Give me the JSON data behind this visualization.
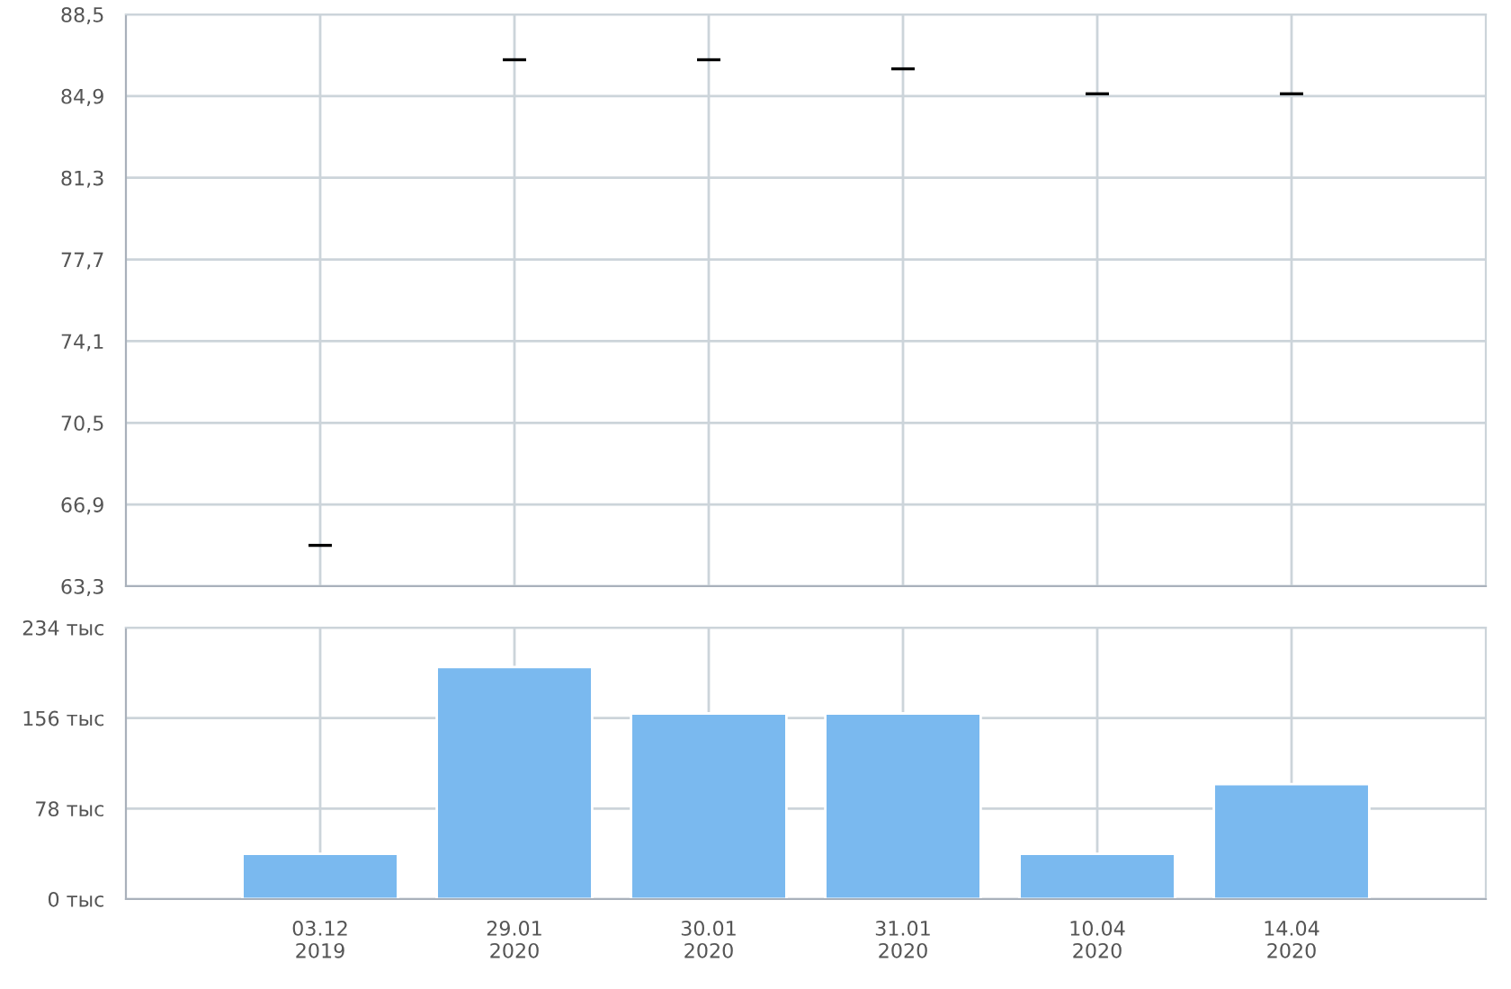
{
  "chart_data": [
    {
      "type": "candlestick",
      "categories": [
        null,
        null,
        null,
        null,
        null,
        null
      ],
      "ohlc": [
        [
          65.1,
          65.1,
          65.1,
          65.1
        ],
        [
          86.5,
          86.5,
          86.5,
          86.5
        ],
        [
          86.5,
          86.5,
          86.5,
          86.5
        ],
        [
          86.1,
          86.1,
          86.1,
          86.1
        ],
        [
          85.0,
          85.0,
          85.0,
          85.0
        ],
        [
          85.0,
          85.0,
          85.0,
          85.0
        ]
      ],
      "ylim": [
        63.3,
        88.5
      ],
      "yticks": [
        {
          "value": 63.3,
          "label": "63,3"
        },
        {
          "value": 66.9,
          "label": "66,9"
        },
        {
          "value": 70.5,
          "label": "70,5"
        },
        {
          "value": 74.1,
          "label": "74,1"
        },
        {
          "value": 77.7,
          "label": "77,7"
        },
        {
          "value": 81.3,
          "label": "81,3"
        },
        {
          "value": 84.9,
          "label": "84,9"
        },
        {
          "value": 88.5,
          "label": "88,5"
        }
      ],
      "grid": true,
      "tick_labels": "y"
    },
    {
      "type": "bar",
      "categories": [
        "03.12\n2019",
        "29.01\n2020",
        "30.01\n2020",
        "31.01\n2020",
        "10.04\n2020",
        "14.04\n2020"
      ],
      "values": [
        39,
        200,
        160,
        160,
        39,
        99
      ],
      "color": "#7ab9ef",
      "ylim": [
        0,
        234
      ],
      "yticks": [
        {
          "value": 0,
          "label": "0 тыс"
        },
        {
          "value": 78,
          "label": "78 тыс"
        },
        {
          "value": 156,
          "label": "156 тыс"
        },
        {
          "value": 234,
          "label": "234 тыс"
        }
      ],
      "grid": true
    }
  ]
}
